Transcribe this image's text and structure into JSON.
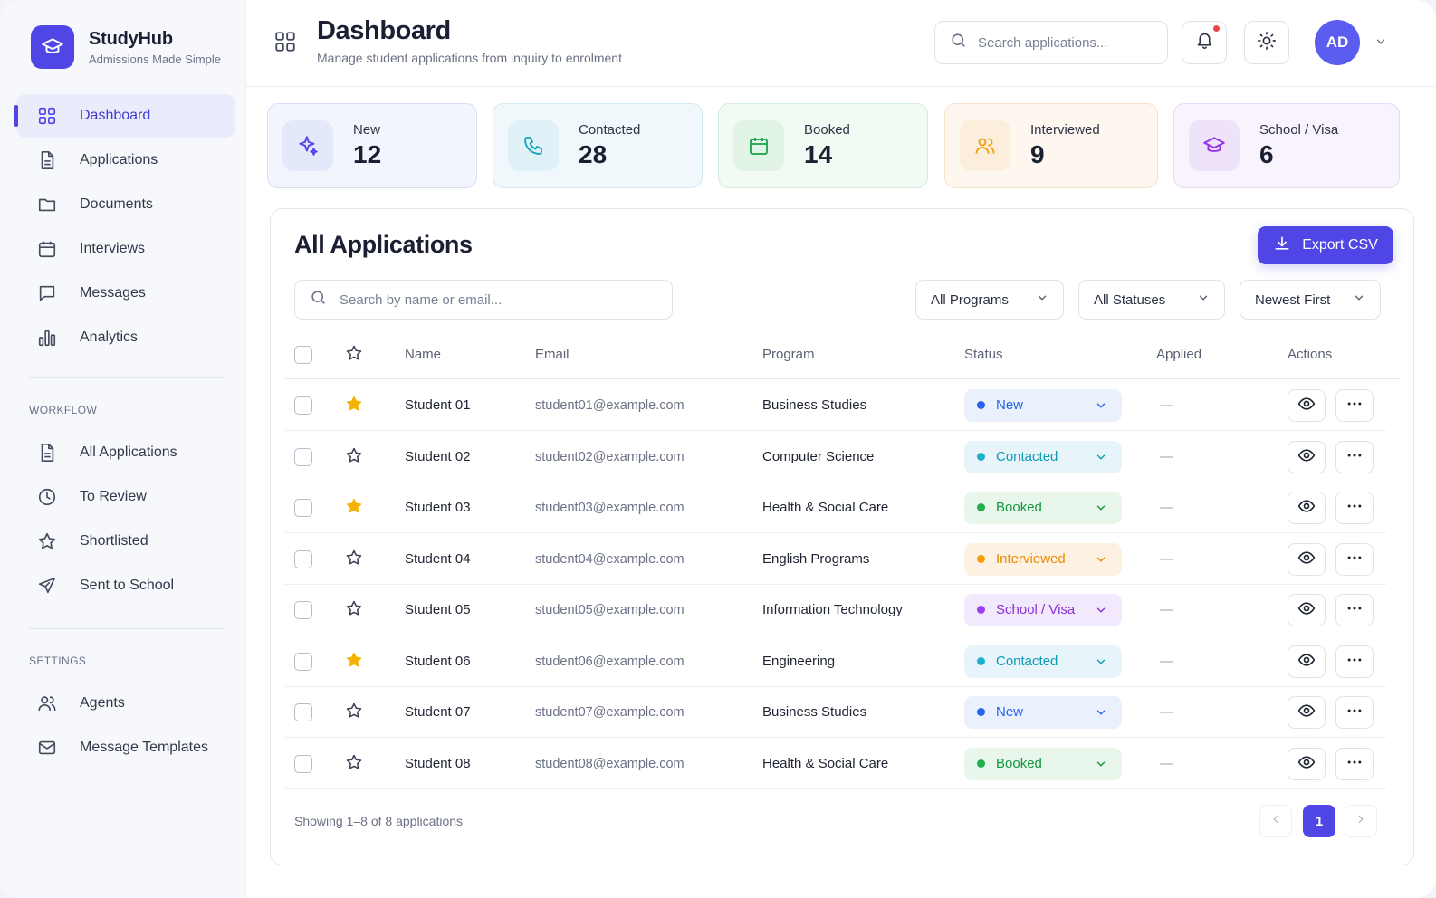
{
  "brand": {
    "name": "StudyHub",
    "tagline": "Admissions Made Simple"
  },
  "sidebar": {
    "main": [
      {
        "label": "Dashboard",
        "icon": "grid-icon",
        "active": true
      },
      {
        "label": "Applications",
        "icon": "file-icon"
      },
      {
        "label": "Documents",
        "icon": "folder-icon"
      },
      {
        "label": "Interviews",
        "icon": "calendar-icon"
      },
      {
        "label": "Messages",
        "icon": "message-icon"
      },
      {
        "label": "Analytics",
        "icon": "bar-chart-icon"
      }
    ],
    "workflow_label": "WORKFLOW",
    "workflow": [
      {
        "label": "All Applications",
        "icon": "file-icon"
      },
      {
        "label": "To Review",
        "icon": "clock-icon"
      },
      {
        "label": "Shortlisted",
        "icon": "star-icon"
      },
      {
        "label": "Sent to School",
        "icon": "send-icon"
      }
    ],
    "settings_label": "SETTINGS",
    "settings": [
      {
        "label": "Agents",
        "icon": "users-icon"
      },
      {
        "label": "Message Templates",
        "icon": "mail-icon"
      }
    ]
  },
  "header": {
    "title": "Dashboard",
    "subtitle": "Manage student applications from inquiry to enrolment",
    "search_placeholder": "Search applications...",
    "avatar_initials": "AD"
  },
  "stats": [
    {
      "label": "New",
      "value": "12",
      "icon": "sparkle-icon",
      "color": "#4f46e5",
      "bg": "#f3f5fd",
      "border": "#d9def6",
      "icbg": "#e4e8fb"
    },
    {
      "label": "Contacted",
      "value": "28",
      "icon": "phone-icon",
      "color": "#0ea5b7",
      "bg": "#f1f8fc",
      "border": "#d3e9f3",
      "icbg": "#e0f1f8"
    },
    {
      "label": "Booked",
      "value": "14",
      "icon": "calendar-icon",
      "color": "#16a34a",
      "bg": "#f2faf4",
      "border": "#d4ecd9",
      "icbg": "#e1f4e6"
    },
    {
      "label": "Interviewed",
      "value": "9",
      "icon": "users-icon",
      "color": "#f59e0b",
      "bg": "#fdf7ef",
      "border": "#f5e4cb",
      "icbg": "#fbeedb"
    },
    {
      "label": "School / Visa",
      "value": "6",
      "icon": "graduation-cap-icon",
      "color": "#9333ea",
      "bg": "#f8f3fd",
      "border": "#e8d9f6",
      "icbg": "#efe3fa"
    }
  ],
  "table": {
    "title": "All Applications",
    "export_label": "Export CSV",
    "search_placeholder": "Search by name or email...",
    "filters": [
      "All Programs",
      "All Statuses",
      "Newest First"
    ],
    "columns": [
      "Name",
      "Email",
      "Program",
      "Status",
      "Applied",
      "Actions"
    ],
    "rows": [
      {
        "name": "Student 01",
        "email": "student01@example.com",
        "program": "Business Studies",
        "status": "New",
        "applied": "—",
        "starred": true
      },
      {
        "name": "Student 02",
        "email": "student02@example.com",
        "program": "Computer Science",
        "status": "Contacted",
        "applied": "—",
        "starred": false
      },
      {
        "name": "Student 03",
        "email": "student03@example.com",
        "program": "Health & Social Care",
        "status": "Booked",
        "applied": "—",
        "starred": true
      },
      {
        "name": "Student 04",
        "email": "student04@example.com",
        "program": "English Programs",
        "status": "Interviewed",
        "applied": "—",
        "starred": false
      },
      {
        "name": "Student 05",
        "email": "student05@example.com",
        "program": "Information Technology",
        "status": "School / Visa",
        "applied": "—",
        "starred": false
      },
      {
        "name": "Student 06",
        "email": "student06@example.com",
        "program": "Engineering",
        "status": "Contacted",
        "applied": "—",
        "starred": true
      },
      {
        "name": "Student 07",
        "email": "student07@example.com",
        "program": "Business Studies",
        "status": "New",
        "applied": "—",
        "starred": false
      },
      {
        "name": "Student 08",
        "email": "student08@example.com",
        "program": "Health & Social Care",
        "status": "Booked",
        "applied": "—",
        "starred": false
      }
    ],
    "footer_text": "Showing 1–8 of 8 applications",
    "current_page": "1"
  },
  "status_colors": {
    "New": {
      "fg": "#2563eb",
      "bg": "#ebf0fd",
      "dot": "#2563eb"
    },
    "Contacted": {
      "fg": "#0e9bb5",
      "bg": "#e7f5fa",
      "dot": "#1fb0d0"
    },
    "Booked": {
      "fg": "#15963f",
      "bg": "#e8f6ec",
      "dot": "#22b04b"
    },
    "Interviewed": {
      "fg": "#ea8a06",
      "bg": "#fdf1e1",
      "dot": "#f59e0b"
    },
    "School / Visa": {
      "fg": "#8b2fd6",
      "bg": "#f3e9fc",
      "dot": "#9b3ff0"
    }
  },
  "accent": "#4f46e5"
}
